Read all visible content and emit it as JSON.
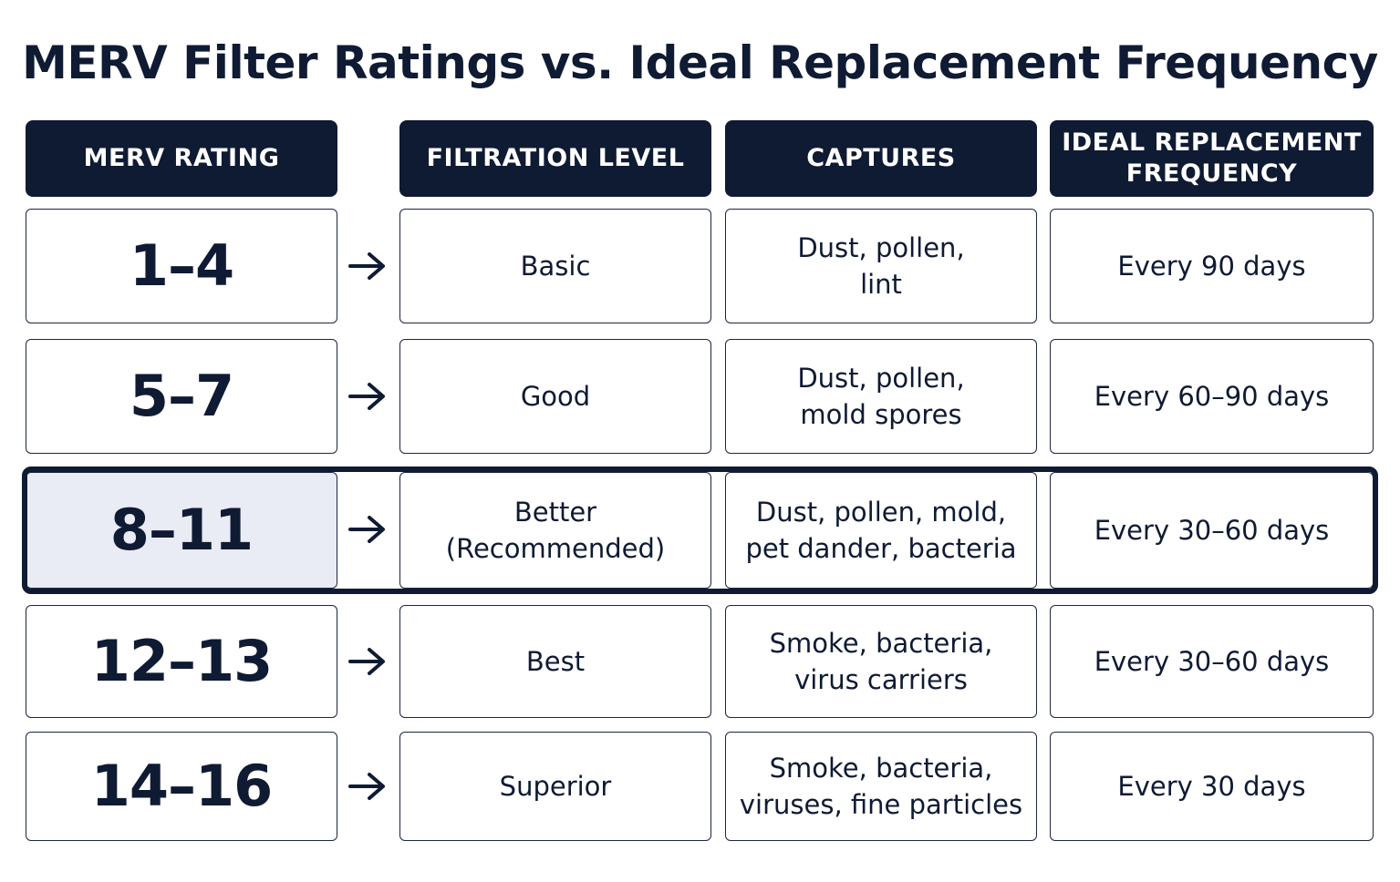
{
  "title": "MERV Filter Ratings vs. Ideal Replacement Frequency",
  "headers": {
    "rating": "MERV RATING",
    "level": "FILTRATION LEVEL",
    "captures": "CAPTURES",
    "frequency_line1": "IDEAL REPLACEMENT",
    "frequency_line2": "FREQUENCY"
  },
  "rows": [
    {
      "rating": "1–4",
      "level": "Basic",
      "captures": "Dust, pollen,\nlint",
      "frequency": "Every 90 days"
    },
    {
      "rating": "5–7",
      "level": "Good",
      "captures": "Dust, pollen,\nmold spores",
      "frequency": "Every 60–90 days"
    },
    {
      "rating": "8–11",
      "level": "Better\n(Recommended)",
      "captures": "Dust, pollen, mold,\npet dander, bacteria",
      "frequency": "Every 30–60 days",
      "highlighted": true
    },
    {
      "rating": "12–13",
      "level": "Best",
      "captures": "Smoke, bacteria,\nvirus carriers",
      "frequency": "Every 30–60 days"
    },
    {
      "rating": "14–16",
      "level": "Superior",
      "captures": "Smoke, bacteria,\nviruses, fine particles",
      "frequency": "Every 30 days"
    }
  ],
  "colors": {
    "header_background": "#0f1a33",
    "highlight_fill": "#e9ecf4",
    "border": "#1d2640"
  },
  "icons": {
    "row_arrow": "arrow-right-icon"
  }
}
